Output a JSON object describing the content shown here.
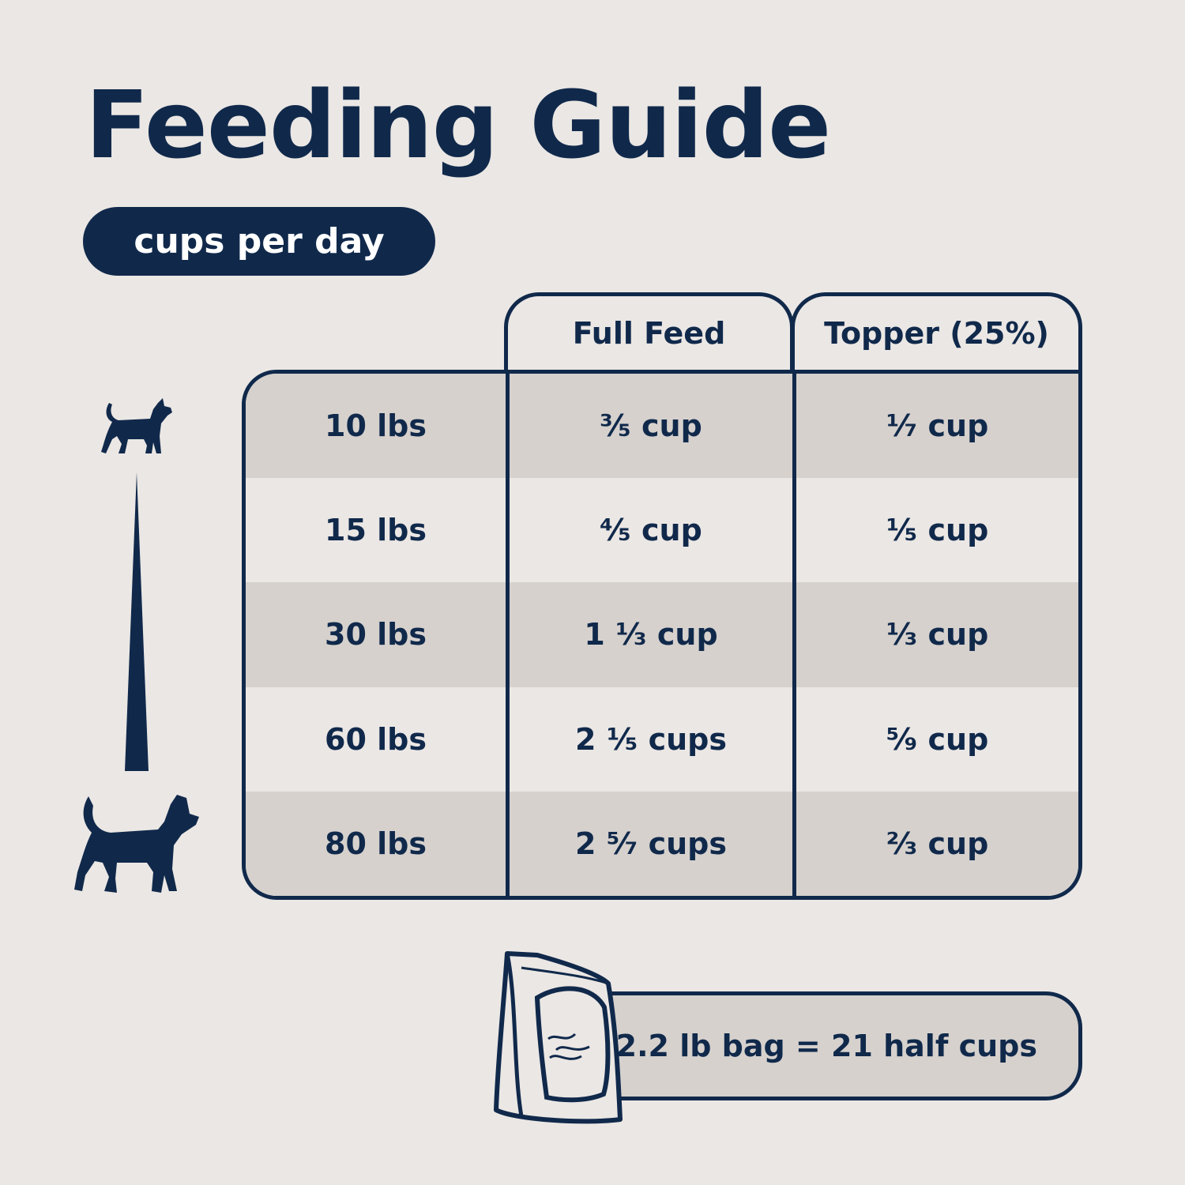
{
  "title": "Feeding Guide",
  "unit_pill": "cups per day",
  "colors": {
    "navy": "#10294b",
    "background": "#ebe7e4",
    "row_shade": "#d6d1cd"
  },
  "table": {
    "headers": [
      "Full Feed",
      "Topper (25%)"
    ],
    "rows": [
      {
        "weight": "10 lbs",
        "full_feed": "³⁄₅ cup",
        "topper": "¹⁄₇ cup"
      },
      {
        "weight": "15 lbs",
        "full_feed": "⁴⁄₅ cup",
        "topper": "¹⁄₅ cup"
      },
      {
        "weight": "30 lbs",
        "full_feed": "1 ¹⁄₃ cup",
        "topper": "¹⁄₃ cup"
      },
      {
        "weight": "60 lbs",
        "full_feed": "2 ¹⁄₅ cups",
        "topper": "⁵⁄₉ cup"
      },
      {
        "weight": "80 lbs",
        "full_feed": "2 ⁵⁄₇ cups",
        "topper": "²⁄₃ cup"
      }
    ]
  },
  "bag_note": "2.2 lb bag = 21 half cups",
  "icons": [
    "small-dog-icon",
    "size-scale-wedge-icon",
    "large-dog-icon",
    "food-bag-icon"
  ]
}
